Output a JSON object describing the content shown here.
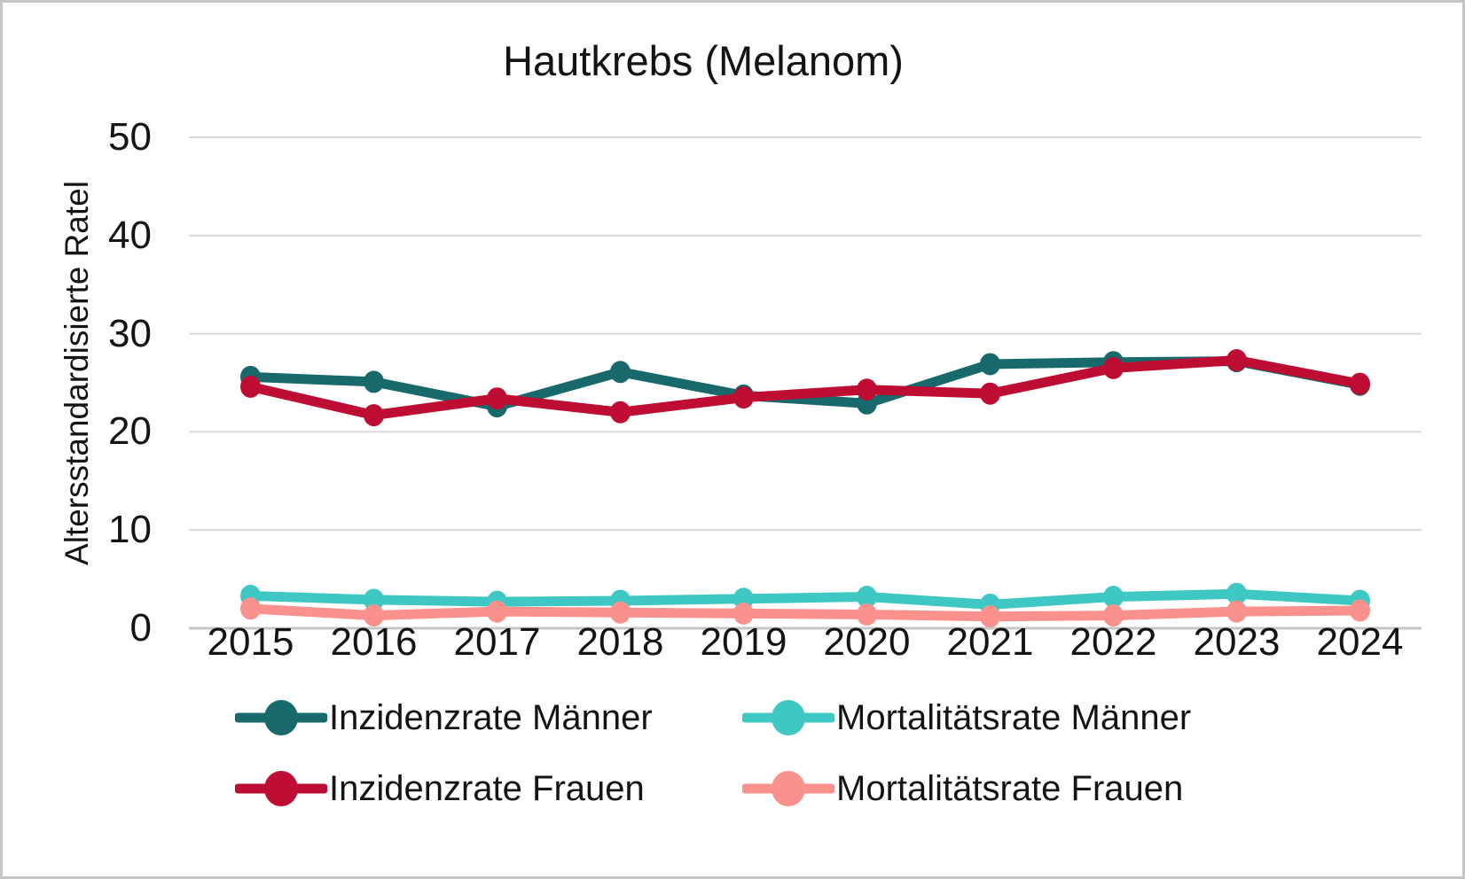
{
  "title": "Hautkrebs (Melanom)",
  "colors": {
    "background": "#ffffff",
    "border": "#c4c4c4",
    "gridline": "#d9d9d9",
    "axis_line": "#c6c6c6",
    "text": "#141414",
    "incidence_men": "#17696b",
    "incidence_women": "#be0d33",
    "mortality_men": "#3fc8c3",
    "mortality_women": "#fb918c"
  },
  "chart_data": {
    "type": "line",
    "title": "Hautkrebs (Melanom)",
    "xlabel": "",
    "ylabel": "Altersstandardisierte Ratel",
    "ylim": [
      0,
      50
    ],
    "yticks": [
      0,
      10,
      20,
      30,
      40,
      50
    ],
    "grid": true,
    "legend_position": "bottom",
    "legend_columns": 2,
    "legend_order": [
      0,
      2,
      1,
      3
    ],
    "marker": "circle",
    "categories": [
      "2015",
      "2016",
      "2017",
      "2018",
      "2019",
      "2020",
      "2021",
      "2022",
      "2023",
      "2024"
    ],
    "series": [
      {
        "name": "Inzidenzrate Männer",
        "color": "#17696b",
        "values": [
          25.6,
          25.1,
          22.6,
          26.1,
          23.7,
          22.9,
          26.9,
          27.1,
          27.2,
          24.8
        ]
      },
      {
        "name": "Inzidenzrate Frauen",
        "color": "#be0d33",
        "values": [
          24.6,
          21.7,
          23.4,
          22.0,
          23.5,
          24.3,
          23.9,
          26.5,
          27.3,
          24.9
        ]
      },
      {
        "name": "Mortalitätsrate Männer",
        "color": "#3fc8c3",
        "values": [
          3.3,
          2.9,
          2.7,
          2.8,
          3.0,
          3.2,
          2.4,
          3.2,
          3.5,
          2.8
        ]
      },
      {
        "name": "Mortalitätsrate Frauen",
        "color": "#fb918c",
        "values": [
          2.0,
          1.3,
          1.7,
          1.6,
          1.5,
          1.4,
          1.2,
          1.3,
          1.7,
          1.8
        ]
      }
    ]
  }
}
